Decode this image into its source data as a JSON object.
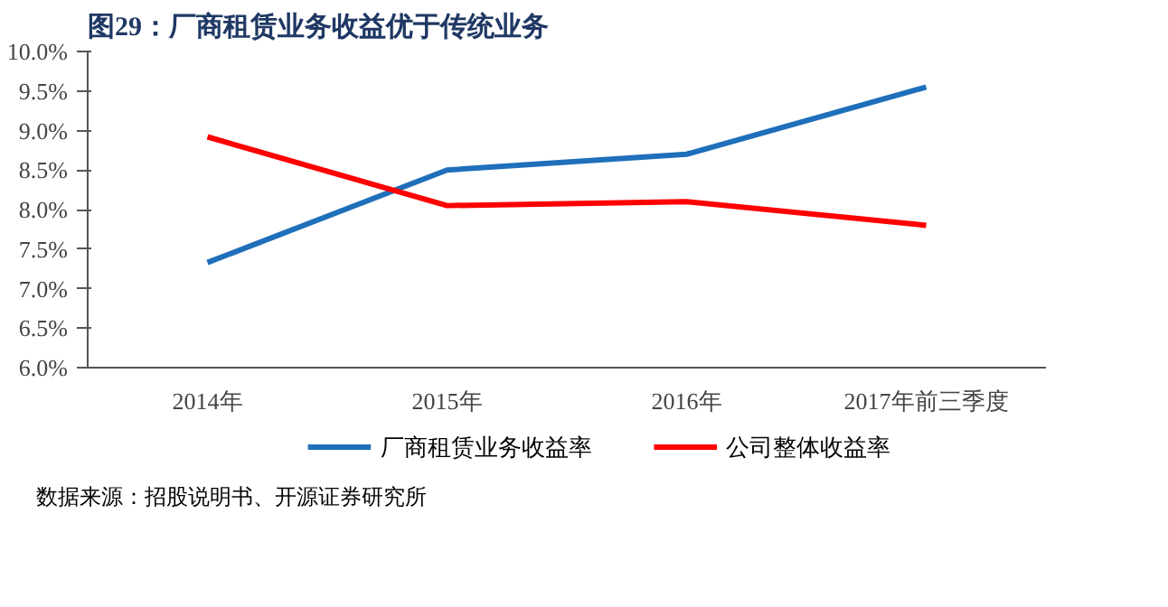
{
  "chart_data": {
    "type": "line",
    "title": "图29：厂商租赁业务收益优于传统业务",
    "categories": [
      "2014年",
      "2015年",
      "2016年",
      "2017年前三季度"
    ],
    "series": [
      {
        "name": "厂商租赁业务收益率",
        "color": "#1f6fba",
        "values": [
          7.33,
          8.5,
          8.7,
          9.55
        ]
      },
      {
        "name": "公司整体收益率",
        "color": "#ff0000",
        "values": [
          8.92,
          8.05,
          8.1,
          7.8
        ]
      }
    ],
    "ylim": [
      6,
      10
    ],
    "yticks": [
      {
        "value": 6,
        "label": "6.0%"
      },
      {
        "value": 6.5,
        "label": "6.5%"
      },
      {
        "value": 7,
        "label": "7.0%"
      },
      {
        "value": 7.5,
        "label": "7.5%"
      },
      {
        "value": 8,
        "label": "8.0%"
      },
      {
        "value": 8.5,
        "label": "8.5%"
      },
      {
        "value": 9,
        "label": "9.0%"
      },
      {
        "value": 9.5,
        "label": "9.5%"
      },
      {
        "value": 10,
        "label": "10.0%"
      }
    ],
    "grid": false,
    "legend": "bottom",
    "marker": "none",
    "line_style": "solid",
    "annotations": [
      "数据来源：招股说明书、开源证券研究所"
    ]
  }
}
